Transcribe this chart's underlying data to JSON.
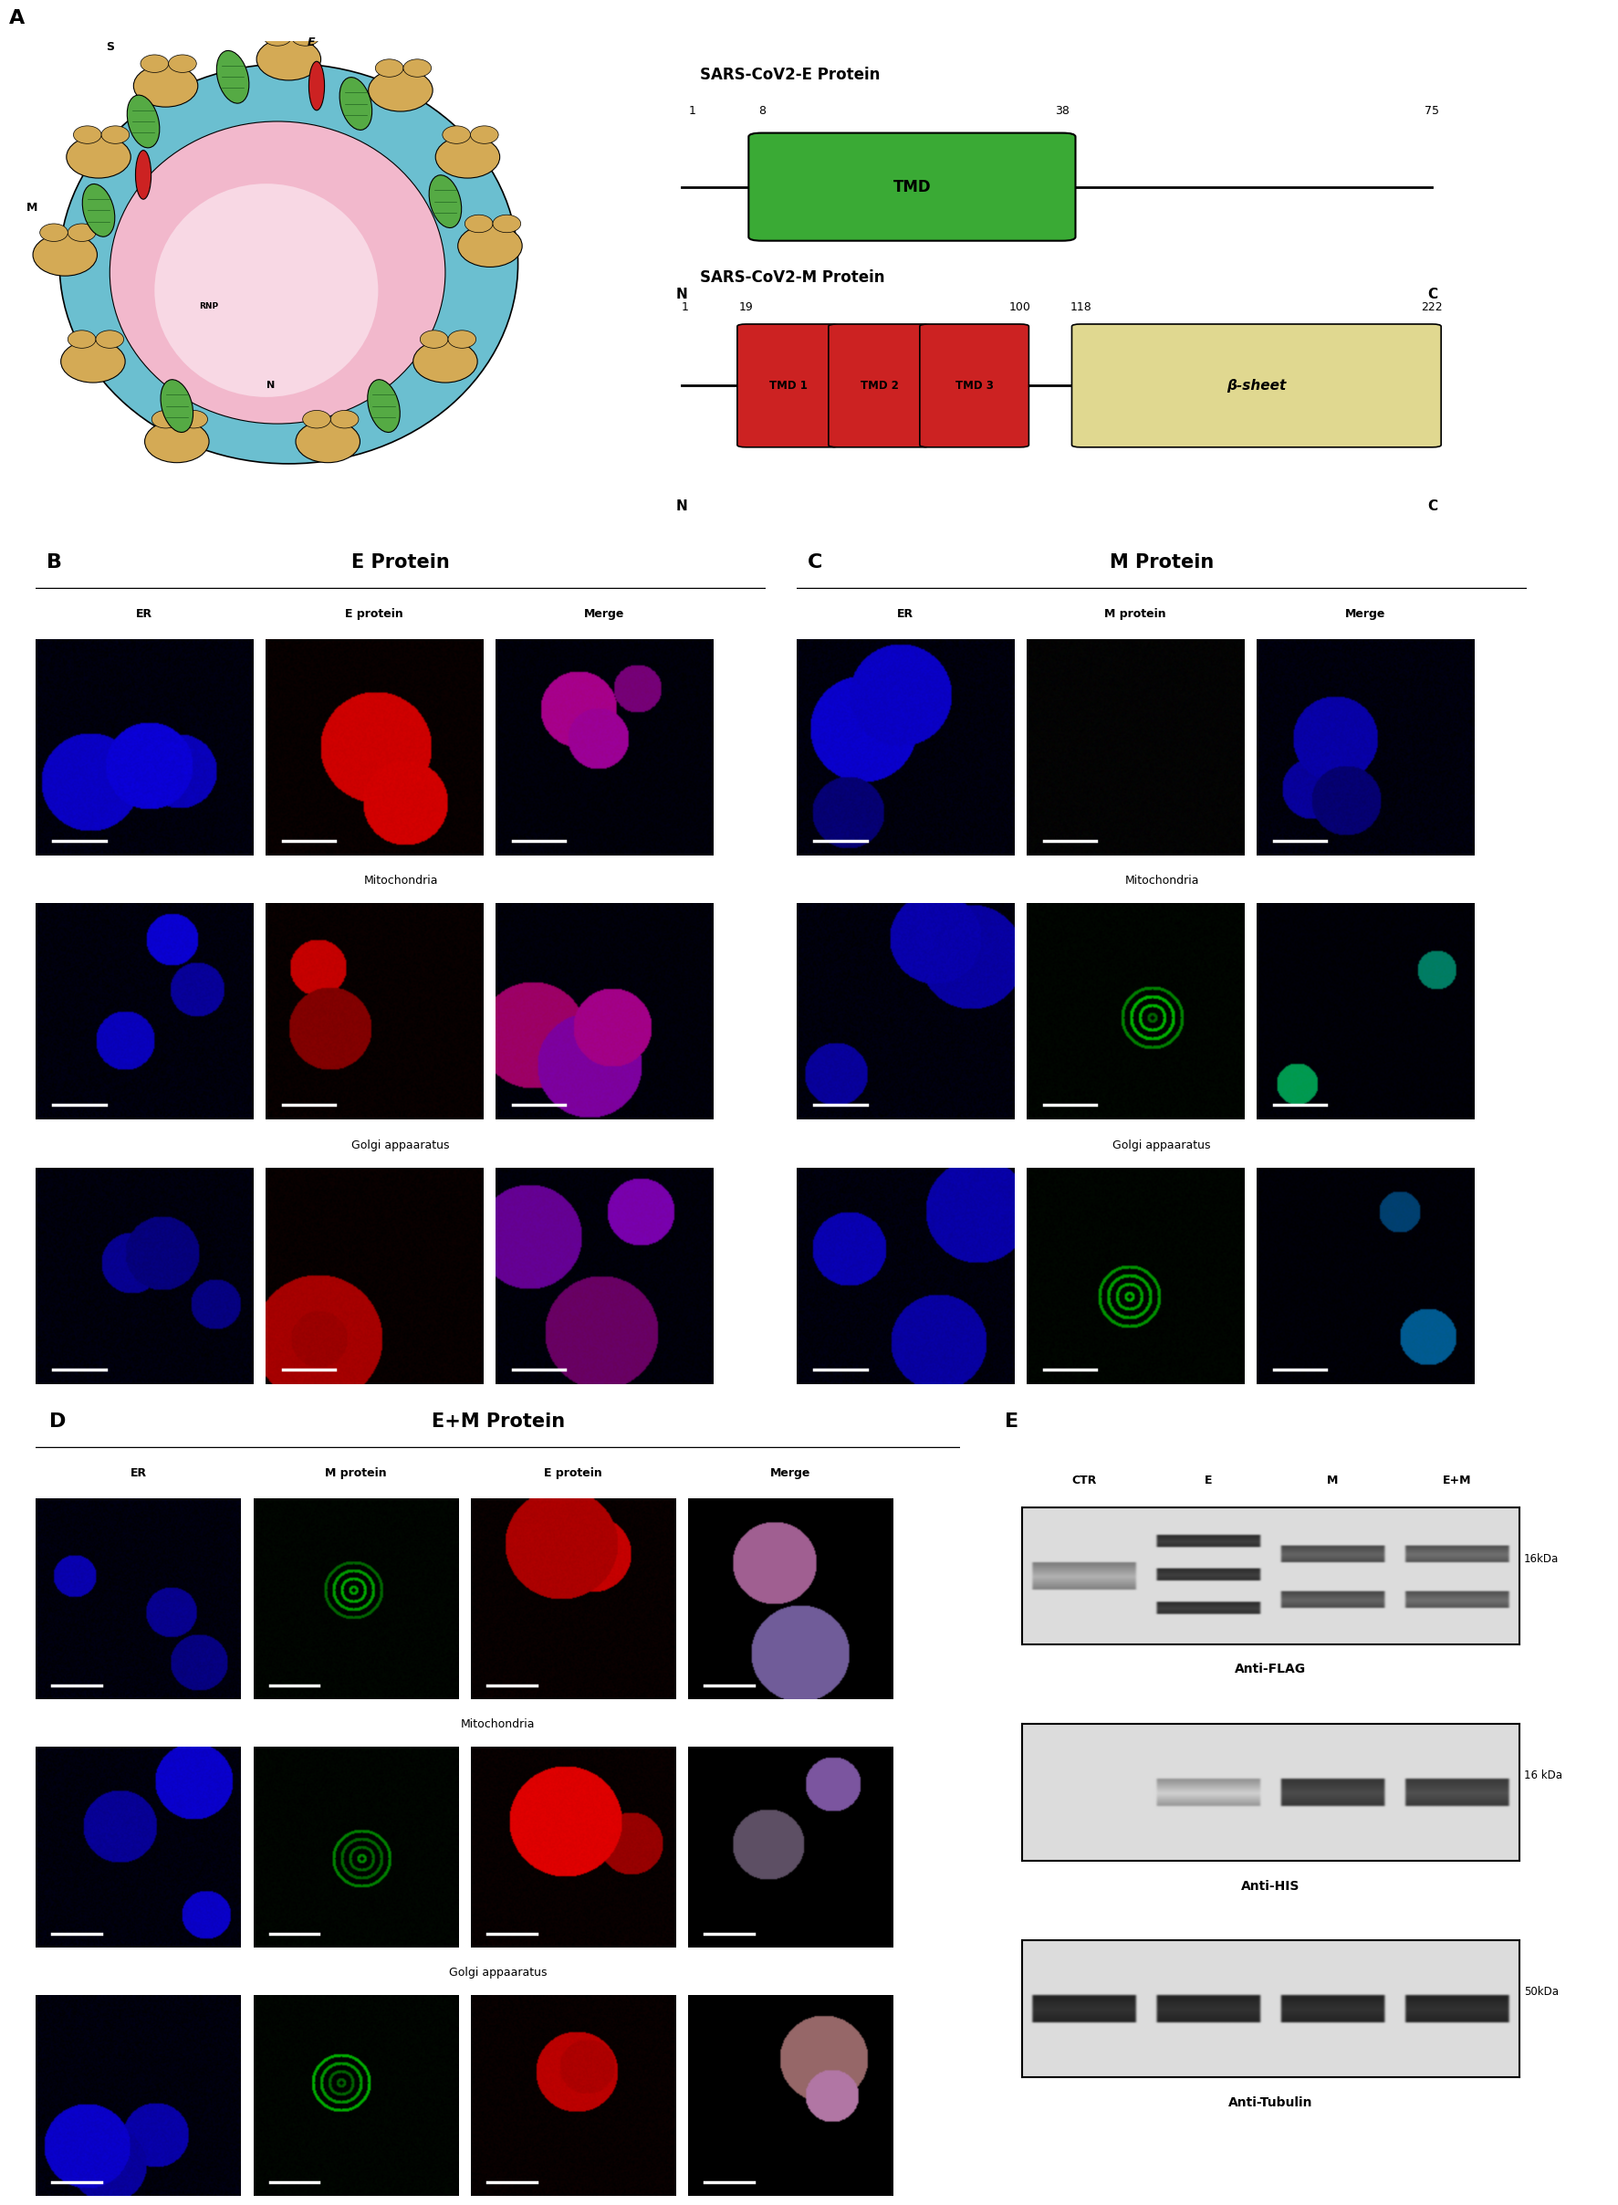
{
  "panel_A_label": "A",
  "panel_B_label": "B",
  "panel_C_label": "C",
  "panel_D_label": "D",
  "panel_E_label": "E",
  "panel_B_title": "E Protein",
  "panel_C_title": "M Protein",
  "panel_D_title": "E+M Protein",
  "sars_e_title": "SARS-CoV2-E Protein",
  "sars_m_title": "SARS-CoV2-M Protein",
  "e_tmd_label": "TMD",
  "e_tmd_color": "#3aaa35",
  "e_pos_1": "1",
  "e_pos_8": "8",
  "e_pos_38": "38",
  "e_pos_75": "75",
  "e_N": "N",
  "e_C": "C",
  "m_tmd1_label": "TMD 1",
  "m_tmd2_label": "TMD 2",
  "m_tmd3_label": "TMD 3",
  "m_beta_label": "β-sheet",
  "m_tmd_color": "#cc2222",
  "m_beta_color": "#e0d890",
  "m_pos_1": "1",
  "m_pos_19": "19",
  "m_pos_100": "100",
  "m_pos_118": "118",
  "m_pos_222": "222",
  "m_N": "N",
  "m_C": "C",
  "B_col_labels": [
    "ER",
    "E protein",
    "Merge"
  ],
  "B_row_labels": [
    "Mitochondria",
    "Golgi appaaratus"
  ],
  "C_col_labels": [
    "ER",
    "M protein",
    "Merge"
  ],
  "C_row_labels": [
    "Mitochondria",
    "Golgi appaaratus"
  ],
  "D_col_labels": [
    "ER",
    "M protein",
    "E protein",
    "Merge"
  ],
  "D_row_labels": [
    "Mitochondria",
    "Golgi appaaratus"
  ],
  "E_labels": [
    "CTR",
    "E",
    "M",
    "E+M"
  ],
  "E_band_labels": [
    "Anti-FLAG",
    "Anti-HIS",
    "Anti-Tubulin"
  ],
  "E_kda_labels": [
    "16kDa",
    "16 kDa",
    "50kDa"
  ],
  "bg_color": "#ffffff"
}
